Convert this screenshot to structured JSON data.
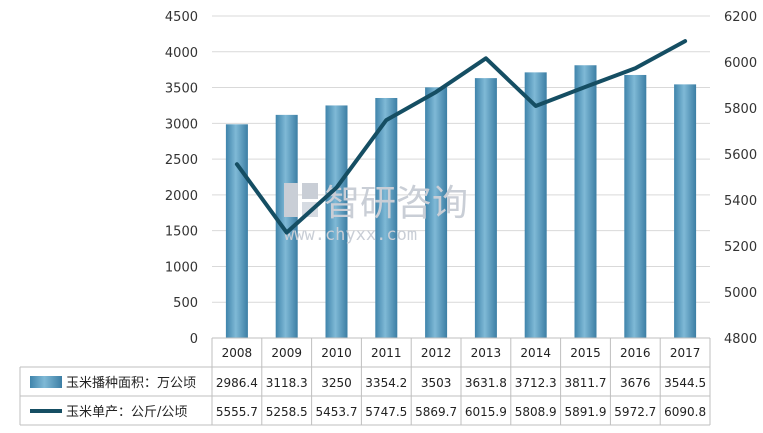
{
  "chart_data": {
    "type": "bar",
    "categories": [
      "2008",
      "2009",
      "2010",
      "2011",
      "2012",
      "2013",
      "2014",
      "2015",
      "2016",
      "2017"
    ],
    "series": [
      {
        "name": "玉米播种面积：万公顷",
        "type": "bar",
        "axis": "left",
        "color": "#5e9fc2",
        "values": [
          2986.4,
          3118.3,
          3250,
          3354.2,
          3503,
          3631.8,
          3712.3,
          3811.7,
          3676,
          3544.5
        ],
        "labels": [
          "2986.4",
          "3118.3",
          "3250",
          "3354.2",
          "3503",
          "3631.8",
          "3712.3",
          "3811.7",
          "3676",
          "3544.5"
        ]
      },
      {
        "name": "玉米单产：公斤/公顷",
        "type": "line",
        "axis": "right",
        "color": "#154e63",
        "values": [
          5555.7,
          5258.5,
          5453.7,
          5747.5,
          5869.7,
          6015.9,
          5808.9,
          5891.9,
          5972.7,
          6090.8
        ],
        "labels": [
          "5555.7",
          "5258.5",
          "5453.7",
          "5747.5",
          "5869.7",
          "6015.9",
          "5808.9",
          "5891.9",
          "5972.7",
          "6090.8"
        ]
      }
    ],
    "ylim_left": [
      0,
      4500
    ],
    "yticks_left": [
      "0",
      "500",
      "1000",
      "1500",
      "2000",
      "2500",
      "3000",
      "3500",
      "4000",
      "4500"
    ],
    "ylim_right": [
      4800,
      6200
    ],
    "yticks_right": [
      "4800",
      "5000",
      "5200",
      "5400",
      "5600",
      "5800",
      "6000",
      "6200"
    ],
    "grid": true,
    "legend": "data-table-below"
  },
  "watermark": {
    "name": "智研咨询",
    "url": "www.chyxx.com"
  }
}
